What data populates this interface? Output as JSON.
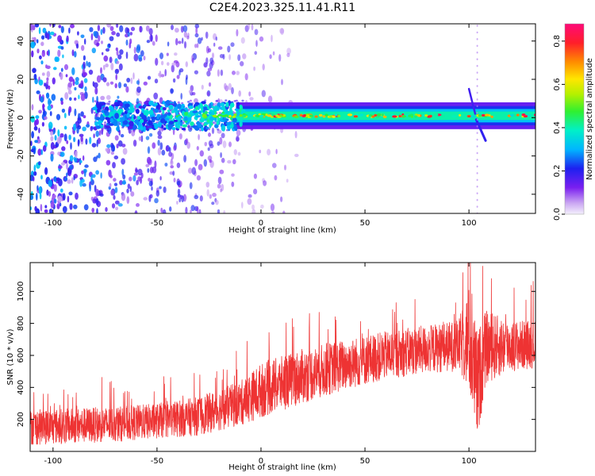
{
  "title": "C2E4.2023.325.11.41.R11",
  "chart_data": [
    {
      "type": "heatmap",
      "xlabel": "Height of straight line (km)",
      "ylabel": "Frequency (Hz)",
      "xlim": [
        -111,
        132
      ],
      "ylim": [
        -50,
        49
      ],
      "xticks": [
        -100,
        -50,
        0,
        50,
        100
      ],
      "yticks": [
        -40,
        -20,
        0,
        20,
        40
      ],
      "colorbar": {
        "label": "Normalized spectral amplitude",
        "range": [
          0,
          0.88
        ],
        "ticks": [
          0.0,
          0.2,
          0.4,
          0.6,
          0.8
        ],
        "colormap": "rainbow (violet to magenta-red)"
      },
      "features": [
        {
          "name": "doppler_line",
          "x_range": [
            -80,
            132
          ],
          "frequency_hz": 1,
          "amplitude_range": [
            0.35,
            0.85
          ]
        },
        {
          "name": "scattered_noise",
          "x_range": [
            -111,
            15
          ],
          "frequency_range_hz": [
            -50,
            49
          ],
          "amplitude_range": [
            0.05,
            0.25
          ]
        },
        {
          "name": "transient_near_104km",
          "x_range": [
            99,
            108
          ],
          "frequency_range_hz": [
            -12,
            15
          ]
        }
      ],
      "grid": false
    },
    {
      "type": "line",
      "xlabel": "Height of straight line (km)",
      "ylabel": "SNR (10 * v/v)",
      "xlim": [
        -111,
        132
      ],
      "ylim": [
        0,
        1180
      ],
      "xticks": [
        -100,
        -50,
        0,
        50,
        100
      ],
      "yticks": [
        200,
        400,
        600,
        800,
        1000
      ],
      "series_color": "#ee3333",
      "envelope": {
        "x": [
          -111,
          -90,
          -70,
          -50,
          -30,
          -10,
          0,
          20,
          40,
          60,
          80,
          95,
          100,
          104,
          108,
          120,
          132
        ],
        "mean": [
          150,
          160,
          170,
          190,
          220,
          300,
          380,
          470,
          540,
          600,
          640,
          660,
          700,
          400,
          650,
          660,
          670
        ],
        "spread": [
          110,
          110,
          110,
          110,
          120,
          140,
          170,
          170,
          160,
          150,
          150,
          160,
          330,
          350,
          230,
          160,
          150
        ]
      },
      "grid": false
    }
  ]
}
